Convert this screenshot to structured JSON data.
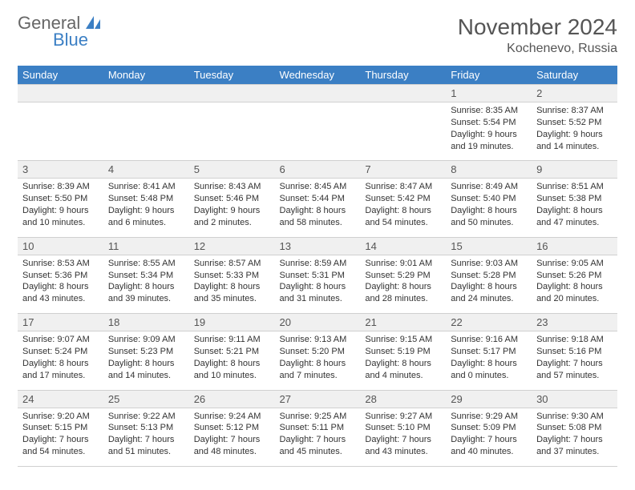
{
  "logo": {
    "general": "General",
    "blue": "Blue"
  },
  "title": {
    "month": "November 2024",
    "location": "Kochenevo, Russia"
  },
  "colors": {
    "header_bg": "#3b7fc4",
    "header_text": "#ffffff",
    "daynum_bg": "#f0f0f0",
    "border": "#d0d0d0",
    "text": "#333333"
  },
  "dayNames": [
    "Sunday",
    "Monday",
    "Tuesday",
    "Wednesday",
    "Thursday",
    "Friday",
    "Saturday"
  ],
  "weeks": [
    [
      {
        "n": "",
        "sr": "",
        "ss": "",
        "dl": ""
      },
      {
        "n": "",
        "sr": "",
        "ss": "",
        "dl": ""
      },
      {
        "n": "",
        "sr": "",
        "ss": "",
        "dl": ""
      },
      {
        "n": "",
        "sr": "",
        "ss": "",
        "dl": ""
      },
      {
        "n": "",
        "sr": "",
        "ss": "",
        "dl": ""
      },
      {
        "n": "1",
        "sr": "Sunrise: 8:35 AM",
        "ss": "Sunset: 5:54 PM",
        "dl": "Daylight: 9 hours and 19 minutes."
      },
      {
        "n": "2",
        "sr": "Sunrise: 8:37 AM",
        "ss": "Sunset: 5:52 PM",
        "dl": "Daylight: 9 hours and 14 minutes."
      }
    ],
    [
      {
        "n": "3",
        "sr": "Sunrise: 8:39 AM",
        "ss": "Sunset: 5:50 PM",
        "dl": "Daylight: 9 hours and 10 minutes."
      },
      {
        "n": "4",
        "sr": "Sunrise: 8:41 AM",
        "ss": "Sunset: 5:48 PM",
        "dl": "Daylight: 9 hours and 6 minutes."
      },
      {
        "n": "5",
        "sr": "Sunrise: 8:43 AM",
        "ss": "Sunset: 5:46 PM",
        "dl": "Daylight: 9 hours and 2 minutes."
      },
      {
        "n": "6",
        "sr": "Sunrise: 8:45 AM",
        "ss": "Sunset: 5:44 PM",
        "dl": "Daylight: 8 hours and 58 minutes."
      },
      {
        "n": "7",
        "sr": "Sunrise: 8:47 AM",
        "ss": "Sunset: 5:42 PM",
        "dl": "Daylight: 8 hours and 54 minutes."
      },
      {
        "n": "8",
        "sr": "Sunrise: 8:49 AM",
        "ss": "Sunset: 5:40 PM",
        "dl": "Daylight: 8 hours and 50 minutes."
      },
      {
        "n": "9",
        "sr": "Sunrise: 8:51 AM",
        "ss": "Sunset: 5:38 PM",
        "dl": "Daylight: 8 hours and 47 minutes."
      }
    ],
    [
      {
        "n": "10",
        "sr": "Sunrise: 8:53 AM",
        "ss": "Sunset: 5:36 PM",
        "dl": "Daylight: 8 hours and 43 minutes."
      },
      {
        "n": "11",
        "sr": "Sunrise: 8:55 AM",
        "ss": "Sunset: 5:34 PM",
        "dl": "Daylight: 8 hours and 39 minutes."
      },
      {
        "n": "12",
        "sr": "Sunrise: 8:57 AM",
        "ss": "Sunset: 5:33 PM",
        "dl": "Daylight: 8 hours and 35 minutes."
      },
      {
        "n": "13",
        "sr": "Sunrise: 8:59 AM",
        "ss": "Sunset: 5:31 PM",
        "dl": "Daylight: 8 hours and 31 minutes."
      },
      {
        "n": "14",
        "sr": "Sunrise: 9:01 AM",
        "ss": "Sunset: 5:29 PM",
        "dl": "Daylight: 8 hours and 28 minutes."
      },
      {
        "n": "15",
        "sr": "Sunrise: 9:03 AM",
        "ss": "Sunset: 5:28 PM",
        "dl": "Daylight: 8 hours and 24 minutes."
      },
      {
        "n": "16",
        "sr": "Sunrise: 9:05 AM",
        "ss": "Sunset: 5:26 PM",
        "dl": "Daylight: 8 hours and 20 minutes."
      }
    ],
    [
      {
        "n": "17",
        "sr": "Sunrise: 9:07 AM",
        "ss": "Sunset: 5:24 PM",
        "dl": "Daylight: 8 hours and 17 minutes."
      },
      {
        "n": "18",
        "sr": "Sunrise: 9:09 AM",
        "ss": "Sunset: 5:23 PM",
        "dl": "Daylight: 8 hours and 14 minutes."
      },
      {
        "n": "19",
        "sr": "Sunrise: 9:11 AM",
        "ss": "Sunset: 5:21 PM",
        "dl": "Daylight: 8 hours and 10 minutes."
      },
      {
        "n": "20",
        "sr": "Sunrise: 9:13 AM",
        "ss": "Sunset: 5:20 PM",
        "dl": "Daylight: 8 hours and 7 minutes."
      },
      {
        "n": "21",
        "sr": "Sunrise: 9:15 AM",
        "ss": "Sunset: 5:19 PM",
        "dl": "Daylight: 8 hours and 4 minutes."
      },
      {
        "n": "22",
        "sr": "Sunrise: 9:16 AM",
        "ss": "Sunset: 5:17 PM",
        "dl": "Daylight: 8 hours and 0 minutes."
      },
      {
        "n": "23",
        "sr": "Sunrise: 9:18 AM",
        "ss": "Sunset: 5:16 PM",
        "dl": "Daylight: 7 hours and 57 minutes."
      }
    ],
    [
      {
        "n": "24",
        "sr": "Sunrise: 9:20 AM",
        "ss": "Sunset: 5:15 PM",
        "dl": "Daylight: 7 hours and 54 minutes."
      },
      {
        "n": "25",
        "sr": "Sunrise: 9:22 AM",
        "ss": "Sunset: 5:13 PM",
        "dl": "Daylight: 7 hours and 51 minutes."
      },
      {
        "n": "26",
        "sr": "Sunrise: 9:24 AM",
        "ss": "Sunset: 5:12 PM",
        "dl": "Daylight: 7 hours and 48 minutes."
      },
      {
        "n": "27",
        "sr": "Sunrise: 9:25 AM",
        "ss": "Sunset: 5:11 PM",
        "dl": "Daylight: 7 hours and 45 minutes."
      },
      {
        "n": "28",
        "sr": "Sunrise: 9:27 AM",
        "ss": "Sunset: 5:10 PM",
        "dl": "Daylight: 7 hours and 43 minutes."
      },
      {
        "n": "29",
        "sr": "Sunrise: 9:29 AM",
        "ss": "Sunset: 5:09 PM",
        "dl": "Daylight: 7 hours and 40 minutes."
      },
      {
        "n": "30",
        "sr": "Sunrise: 9:30 AM",
        "ss": "Sunset: 5:08 PM",
        "dl": "Daylight: 7 hours and 37 minutes."
      }
    ]
  ]
}
